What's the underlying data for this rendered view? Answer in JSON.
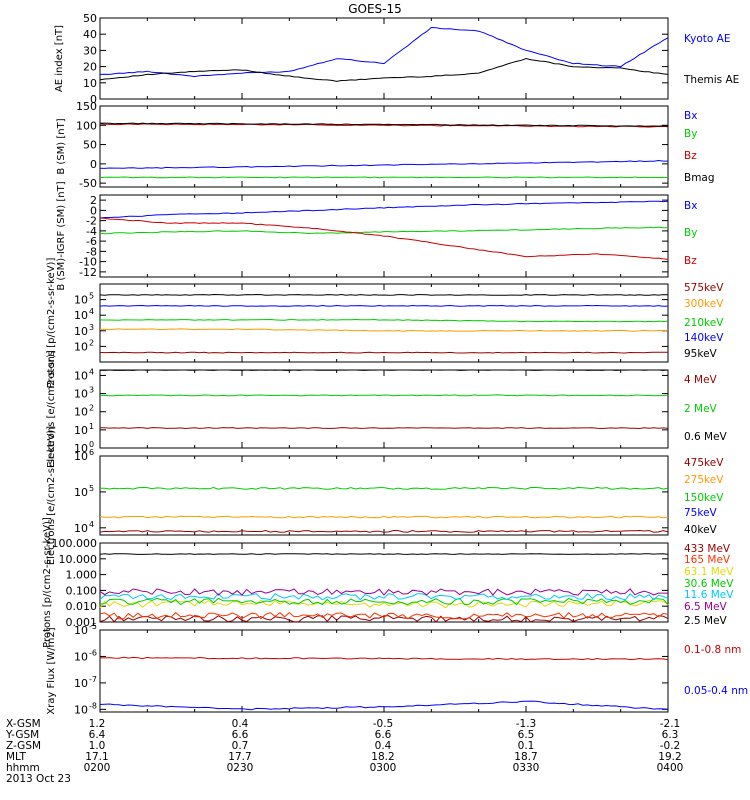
{
  "title": "GOES-15",
  "colors": {
    "black": "#000000",
    "blue": "#0000ff",
    "green": "#00cc00",
    "red": "#cc0000",
    "darkred": "#990000",
    "orange": "#ff9900",
    "cyan": "#00c8ff",
    "yellow": "#dddd00",
    "purple": "#990099",
    "orangered": "#ff3300"
  },
  "chart_data": [
    {
      "type": "line",
      "ylabel": "AE index [nT]",
      "yscale": "linear",
      "ylim": [
        0,
        50
      ],
      "yticks": [
        0,
        10,
        20,
        30,
        40,
        50
      ],
      "x": [
        "0200",
        "0210",
        "0220",
        "0230",
        "0240",
        "0250",
        "0300",
        "0310",
        "0320",
        "0330",
        "0340",
        "0350",
        "0400"
      ],
      "series": [
        {
          "name": "Kyoto AE",
          "color": "blue",
          "values": [
            15,
            17,
            14,
            16,
            17,
            25,
            22,
            44,
            42,
            30,
            22,
            20,
            38
          ]
        },
        {
          "name": "Themis AE",
          "color": "black",
          "values": [
            12,
            15,
            17,
            18,
            14,
            11,
            13,
            14,
            16,
            25,
            20,
            19,
            15
          ]
        }
      ]
    },
    {
      "type": "line",
      "ylabel": "B (SM) [nT]",
      "yscale": "linear",
      "ylim": [
        -60,
        150
      ],
      "yticks": [
        -50,
        0,
        50,
        100,
        150
      ],
      "x": [
        "0200",
        "0230",
        "0300",
        "0330",
        "0400"
      ],
      "series": [
        {
          "name": "Bx",
          "color": "blue",
          "values": [
            -12,
            -8,
            -3,
            2,
            8
          ]
        },
        {
          "name": "By",
          "color": "green",
          "values": [
            -35,
            -35,
            -35,
            -35,
            -35
          ]
        },
        {
          "name": "Bz",
          "color": "red",
          "values": [
            103,
            102,
            100,
            98,
            96
          ]
        },
        {
          "name": "Bmag",
          "color": "black",
          "values": [
            105,
            104,
            102,
            100,
            98
          ]
        }
      ]
    },
    {
      "type": "line",
      "ylabel": "B (SM)-IGRF (SM) [nT]",
      "yscale": "linear",
      "ylim": [
        -13,
        3
      ],
      "yticks": [
        -12,
        -10,
        -8,
        -6,
        -4,
        -2,
        0,
        2
      ],
      "x": [
        "0200",
        "0215",
        "0230",
        "0245",
        "0300",
        "0315",
        "0330",
        "0345",
        "0400"
      ],
      "series": [
        {
          "name": "Bx",
          "color": "blue",
          "values": [
            -1.5,
            -0.8,
            -0.5,
            0.0,
            0.5,
            1.0,
            1.3,
            1.5,
            1.8
          ]
        },
        {
          "name": "By",
          "color": "green",
          "values": [
            -4.5,
            -4.2,
            -4.0,
            -4.5,
            -4.2,
            -4.0,
            -3.8,
            -3.5,
            -3.3
          ]
        },
        {
          "name": "Bz",
          "color": "red",
          "values": [
            -1.5,
            -2.5,
            -2.5,
            -3.5,
            -5.0,
            -7.0,
            -9.0,
            -8.5,
            -9.5
          ]
        }
      ]
    },
    {
      "type": "line",
      "ylabel": "Protons [p/(cm2-s-sr-keV)]",
      "yscale": "log",
      "ylim_exp": [
        1,
        6
      ],
      "yticks_exp": [
        2,
        3,
        4,
        5
      ],
      "x": [
        "0200",
        "0230",
        "0300",
        "0330",
        "0400"
      ],
      "series": [
        {
          "name": "575keV",
          "color": "darkred",
          "values_log10": [
            1.6,
            1.6,
            1.6,
            1.6,
            1.6
          ]
        },
        {
          "name": "300keV",
          "color": "orange",
          "values_log10": [
            3.1,
            3.1,
            3.0,
            3.0,
            3.0
          ]
        },
        {
          "name": "210keV",
          "color": "green",
          "values_log10": [
            3.7,
            3.7,
            3.7,
            3.6,
            3.6
          ]
        },
        {
          "name": "140keV",
          "color": "blue",
          "values_log10": [
            4.6,
            4.6,
            4.6,
            4.6,
            4.6
          ]
        },
        {
          "name": "95keV",
          "color": "black",
          "values_log10": [
            5.3,
            5.3,
            5.3,
            5.3,
            5.3
          ]
        }
      ]
    },
    {
      "type": "line",
      "ylabel": "Electrons [e/(cm2-s-sr)]",
      "yscale": "log",
      "ylim_exp": [
        0,
        4.3
      ],
      "yticks_exp": [
        0,
        1,
        2,
        3,
        4
      ],
      "x": [
        "0200",
        "0230",
        "0300",
        "0330",
        "0400"
      ],
      "series": [
        {
          "name": "4 MeV",
          "color": "darkred",
          "values_log10": [
            1.1,
            1.1,
            1.1,
            1.1,
            1.1
          ]
        },
        {
          "name": "2 MeV",
          "color": "green",
          "values_log10": [
            2.9,
            2.9,
            2.9,
            2.9,
            2.9
          ]
        },
        {
          "name": "0.6 MeV",
          "color": "black",
          "values_log10": [
            4.3,
            4.3,
            4.3,
            4.3,
            4.3
          ]
        }
      ]
    },
    {
      "type": "line",
      "ylabel": "Electrons [e/(cm2-s-sr-keV)]",
      "yscale": "log",
      "ylim_exp": [
        3.8,
        6
      ],
      "yticks_exp": [
        4,
        5,
        6
      ],
      "x": [
        "0200",
        "0230",
        "0300",
        "0330",
        "0400"
      ],
      "series": [
        {
          "name": "475keV",
          "color": "darkred",
          "values_log10": [
            3.9,
            3.9,
            3.9,
            3.9,
            3.9
          ]
        },
        {
          "name": "275keV",
          "color": "orange",
          "values_log10": [
            4.3,
            4.3,
            4.3,
            4.3,
            4.3
          ]
        },
        {
          "name": "150keV",
          "color": "green",
          "values_log10": [
            5.1,
            5.1,
            5.1,
            5.1,
            5.1
          ]
        },
        {
          "name": "75keV",
          "color": "blue",
          "values_log10": [
            6.2,
            6.2,
            6.2,
            6.2,
            6.2
          ]
        },
        {
          "name": "40keV",
          "color": "black",
          "values_log10": [
            6.3,
            6.3,
            6.3,
            6.3,
            6.3
          ]
        }
      ]
    },
    {
      "type": "line",
      "ylabel": "Protons [p/(cm2-s-sr-keV)]",
      "yscale": "log",
      "ylim_exp": [
        -3,
        2
      ],
      "yticks_exp": [
        -3,
        -2,
        -1,
        0,
        1,
        2
      ],
      "ytick_labels": [
        "0.001",
        "0.010",
        "0.100",
        "1.000",
        "10.000",
        "100.000"
      ],
      "x": [
        "0200",
        "0230",
        "0300",
        "0330",
        "0400"
      ],
      "series": [
        {
          "name": "433 MeV",
          "color": "darkred",
          "values_log10": [
            -2.8,
            -2.8,
            -2.8,
            -2.8,
            -2.8
          ]
        },
        {
          "name": "165 MeV",
          "color": "orangered",
          "values_log10": [
            -2.6,
            -2.6,
            -2.6,
            -2.6,
            -2.6
          ]
        },
        {
          "name": "63.1 MeV",
          "color": "yellow",
          "values_log10": [
            -1.9,
            -1.8,
            -1.9,
            -1.9,
            -1.8
          ]
        },
        {
          "name": "30.6 MeV",
          "color": "green",
          "values_log10": [
            -1.7,
            -1.7,
            -1.7,
            -1.7,
            -1.7
          ]
        },
        {
          "name": "11.6 MeV",
          "color": "cyan",
          "values_log10": [
            -1.4,
            -1.4,
            -1.4,
            -1.4,
            -1.4
          ]
        },
        {
          "name": "6.5 MeV",
          "color": "purple",
          "values_log10": [
            -1.1,
            -1.1,
            -1.1,
            -1.1,
            -1.1
          ]
        },
        {
          "name": "2.5 MeV",
          "color": "black",
          "values_log10": [
            1.3,
            1.3,
            1.3,
            1.3,
            1.3
          ]
        }
      ]
    },
    {
      "type": "line",
      "ylabel": "Xray Flux [W/m2]",
      "yscale": "log",
      "ylim_exp": [
        -8.1,
        -5
      ],
      "yticks_exp": [
        -8,
        -7,
        -6,
        -5
      ],
      "x": [
        "0200",
        "0230",
        "0300",
        "0330",
        "0400"
      ],
      "series": [
        {
          "name": "0.1-0.8 nm",
          "color": "red",
          "values_log10": [
            -6.05,
            -6.07,
            -6.08,
            -6.1,
            -6.1
          ]
        },
        {
          "name": "0.05-0.4 nm",
          "color": "blue",
          "values_log10": [
            -7.8,
            -8.0,
            -7.9,
            -7.7,
            -8.0
          ]
        }
      ]
    }
  ],
  "xaxis": {
    "row_labels": [
      "X-GSM",
      "Y-GSM",
      "Z-GSM",
      "MLT",
      "hhmm"
    ],
    "columns": [
      [
        "1.2",
        "6.4",
        "1.0",
        "17.1",
        "0200"
      ],
      [
        "0.4",
        "6.6",
        "0.7",
        "17.7",
        "0230"
      ],
      [
        "-0.5",
        "6.6",
        "0.4",
        "18.2",
        "0300"
      ],
      [
        "-1.3",
        "6.5",
        "0.1",
        "18.7",
        "0330"
      ],
      [
        "-2.1",
        "6.3",
        "-0.2",
        "19.2",
        "0400"
      ]
    ],
    "date": "2013 Oct 23"
  }
}
